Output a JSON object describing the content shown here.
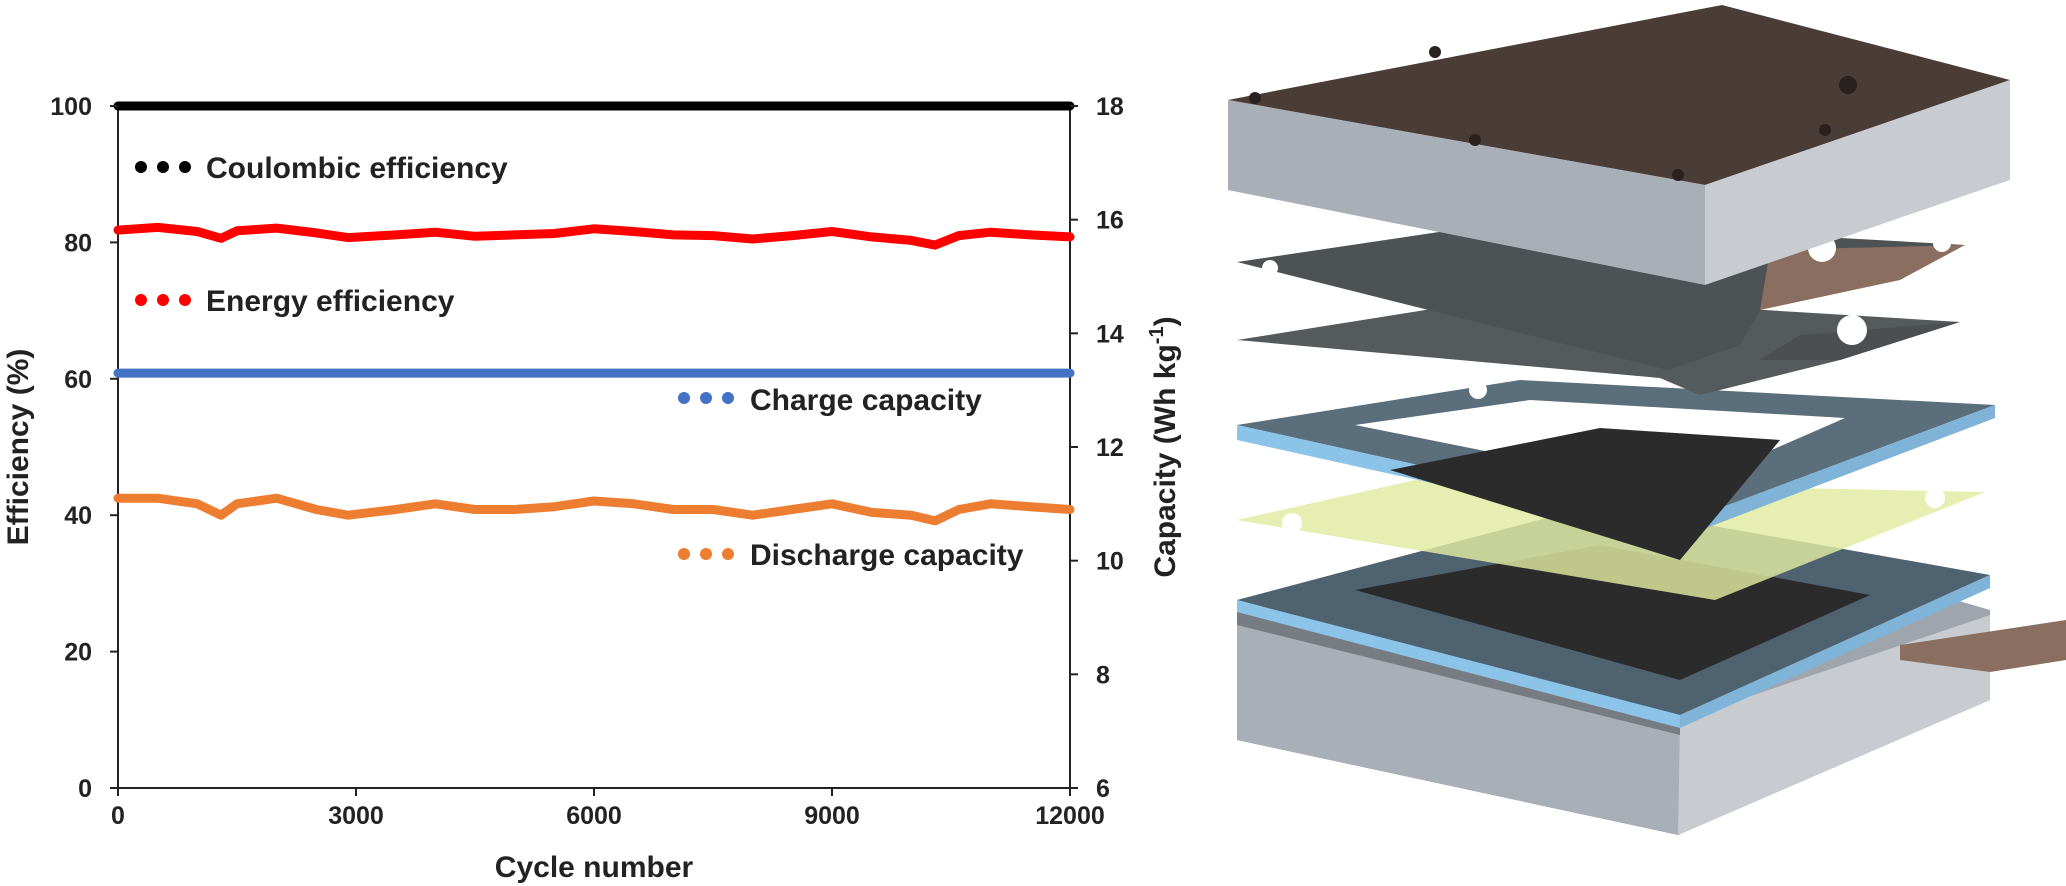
{
  "chart_data": {
    "type": "line",
    "x_label": "Cycle number",
    "y_left_label": "Efficiency (%)",
    "y_right_label": "Capacity (Wh kg",
    "y_right_label_sup": "-1",
    "y_right_label_close": ")",
    "xlim": [
      0,
      12000
    ],
    "x_ticks": [
      "0",
      "3000",
      "6000",
      "9000",
      "12000"
    ],
    "x_tick_values": [
      0,
      3000,
      6000,
      9000,
      12000
    ],
    "y_left_lim": [
      0,
      100
    ],
    "y_left_ticks": [
      "0",
      "20",
      "40",
      "60",
      "80",
      "100"
    ],
    "y_left_tick_values": [
      0,
      20,
      40,
      60,
      80,
      100
    ],
    "y_right_lim": [
      6,
      18
    ],
    "y_right_ticks": [
      "6",
      "8",
      "10",
      "12",
      "14",
      "16",
      "18"
    ],
    "y_right_tick_values": [
      6,
      8,
      10,
      12,
      14,
      16,
      18
    ],
    "grid": false,
    "legend_placement": "inline",
    "x": [
      0,
      500,
      1000,
      1300,
      1500,
      2000,
      2500,
      2900,
      3500,
      4000,
      4500,
      5000,
      5500,
      6000,
      6500,
      7000,
      7500,
      8000,
      8500,
      9000,
      9500,
      10000,
      10300,
      10600,
      11000,
      11500,
      12000
    ],
    "series": [
      {
        "name": "Coulombic efficiency",
        "axis": "left",
        "color": "#000000",
        "values": [
          100,
          100,
          100,
          100,
          100,
          100,
          100,
          100,
          100,
          100,
          100,
          100,
          100,
          100,
          100,
          100,
          100,
          100,
          100,
          100,
          100,
          100,
          100,
          100,
          100,
          100,
          100
        ]
      },
      {
        "name": "Energy efficiency",
        "axis": "left",
        "color": "#ff0000",
        "values": [
          81.8,
          82.2,
          81.6,
          80.6,
          81.7,
          82.1,
          81.4,
          80.7,
          81.1,
          81.5,
          80.9,
          81.1,
          81.3,
          82.0,
          81.6,
          81.1,
          81.0,
          80.5,
          81.0,
          81.6,
          80.8,
          80.3,
          79.6,
          81.0,
          81.5,
          81.1,
          80.8
        ]
      },
      {
        "name": "Charge capacity",
        "axis": "right",
        "color": "#4472c4",
        "values": [
          13.3,
          13.3,
          13.3,
          13.3,
          13.3,
          13.3,
          13.3,
          13.3,
          13.3,
          13.3,
          13.3,
          13.3,
          13.3,
          13.3,
          13.3,
          13.3,
          13.3,
          13.3,
          13.3,
          13.3,
          13.3,
          13.3,
          13.3,
          13.3,
          13.3,
          13.3,
          13.3
        ]
      },
      {
        "name": "Discharge capacity",
        "axis": "right",
        "color": "#ed7d31",
        "values": [
          11.1,
          11.1,
          11.0,
          10.8,
          11.0,
          11.1,
          10.9,
          10.8,
          10.9,
          11.0,
          10.9,
          10.9,
          10.95,
          11.05,
          11.0,
          10.9,
          10.9,
          10.8,
          10.9,
          11.0,
          10.85,
          10.8,
          10.7,
          10.9,
          11.0,
          10.95,
          10.9
        ]
      }
    ]
  },
  "legend": [
    {
      "label": "Coulombic efficiency",
      "color": "#000000"
    },
    {
      "label": "Energy efficiency",
      "color": "#ff0000"
    },
    {
      "label": "Charge capacity",
      "color": "#4472c4"
    },
    {
      "label": "Discharge capacity",
      "color": "#ed7d31"
    }
  ],
  "illustration": {
    "name": "exploded stack of flow cell layers",
    "colors": {
      "end_plate_top": "#4a3c37",
      "metal_side": "#a9afb6",
      "graphite_plate": "#555a5d",
      "frame": "#6d8aa1",
      "frame_edge": "#8cc3e9",
      "felt": "#2b2b2b",
      "membrane": "#e1eba0",
      "copper_tab": "#8a6e5f"
    }
  }
}
